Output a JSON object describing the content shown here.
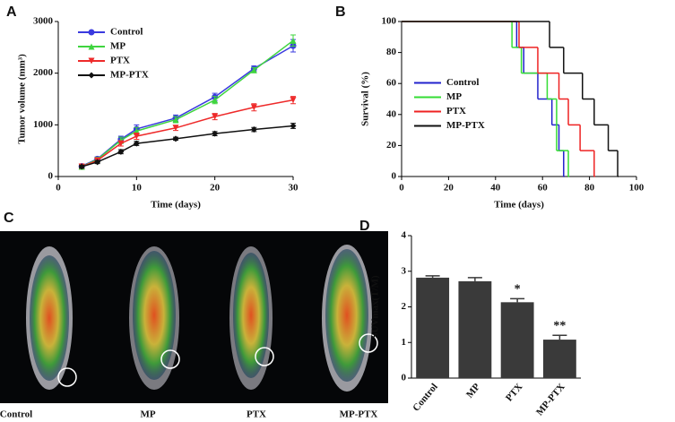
{
  "chart_data": [
    {
      "type": "line",
      "label": "A",
      "xlabel": "Time (days)",
      "ylabel": "Tumor volume (mm³)",
      "x": [
        3,
        5,
        8,
        10,
        15,
        20,
        25,
        30
      ],
      "xlim": [
        0,
        30
      ],
      "xticks": [
        0,
        10,
        20,
        30
      ],
      "ylim": [
        0,
        3000
      ],
      "yticks": [
        0,
        1000,
        2000,
        3000
      ],
      "legend": "upper left",
      "series": [
        {
          "name": "Control",
          "color": "#3a3adf",
          "marker": "circle",
          "values": [
            200,
            340,
            720,
            920,
            1130,
            1540,
            2090,
            2530
          ],
          "errors": [
            40,
            40,
            60,
            80,
            60,
            70,
            50,
            120
          ]
        },
        {
          "name": "MP",
          "color": "#3fd43f",
          "marker": "triangle",
          "values": [
            190,
            330,
            700,
            880,
            1100,
            1480,
            2060,
            2630
          ],
          "errors": [
            40,
            40,
            60,
            70,
            60,
            70,
            50,
            110
          ]
        },
        {
          "name": "PTX",
          "color": "#ee2a2a",
          "marker": "triangle-down",
          "values": [
            190,
            310,
            640,
            780,
            940,
            1160,
            1340,
            1480
          ],
          "errors": [
            30,
            30,
            50,
            60,
            50,
            60,
            70,
            70
          ]
        },
        {
          "name": "MP-PTX",
          "color": "#111111",
          "marker": "diamond",
          "values": [
            190,
            280,
            480,
            640,
            730,
            830,
            910,
            980
          ],
          "errors": [
            30,
            30,
            40,
            40,
            30,
            40,
            40,
            50
          ]
        }
      ]
    },
    {
      "type": "step",
      "label": "B",
      "xlabel": "Time (days)",
      "ylabel": "Survival (%)",
      "xlim": [
        0,
        100
      ],
      "xticks": [
        0,
        20,
        40,
        60,
        80,
        100
      ],
      "ylim": [
        0,
        100
      ],
      "yticks": [
        0,
        20,
        40,
        60,
        80,
        100
      ],
      "legend": "center left",
      "series": [
        {
          "name": "Control",
          "color": "#2222cc",
          "x": [
            0,
            49,
            52,
            58,
            64,
            67,
            69
          ],
          "values": [
            100,
            83.3,
            66.7,
            50,
            33.3,
            16.7,
            0
          ]
        },
        {
          "name": "MP",
          "color": "#33dd33",
          "x": [
            0,
            47,
            51,
            62,
            66,
            71
          ],
          "values": [
            100,
            83.3,
            66.7,
            50,
            16.7,
            0
          ]
        },
        {
          "name": "PTX",
          "color": "#ee2222",
          "x": [
            0,
            50,
            58,
            67,
            71,
            76,
            82
          ],
          "values": [
            100,
            83.3,
            66.7,
            50,
            33.3,
            16.7,
            0
          ]
        },
        {
          "name": "MP-PTX",
          "color": "#111111",
          "x": [
            0,
            63,
            69,
            77,
            82,
            88,
            92
          ],
          "values": [
            100,
            83.3,
            66.7,
            50,
            33.3,
            16.7,
            0
          ]
        }
      ]
    },
    {
      "type": "bar",
      "label": "D",
      "ylabel": "SUVmax(T/M)",
      "color": "#3a3a3a",
      "categories": [
        "Control",
        "MP",
        "PTX",
        "MP-PTX"
      ],
      "values": [
        2.82,
        2.72,
        2.13,
        1.08
      ],
      "errors": [
        0.05,
        0.1,
        0.1,
        0.12
      ],
      "value_labels": [
        null,
        null,
        "*",
        "**"
      ],
      "ylim": [
        0,
        4
      ],
      "yticks": [
        0,
        1,
        2,
        3,
        4
      ]
    }
  ],
  "image_panel": {
    "label": "C",
    "captions": [
      "Control",
      "MP",
      "PTX",
      "MP-PTX"
    ]
  }
}
